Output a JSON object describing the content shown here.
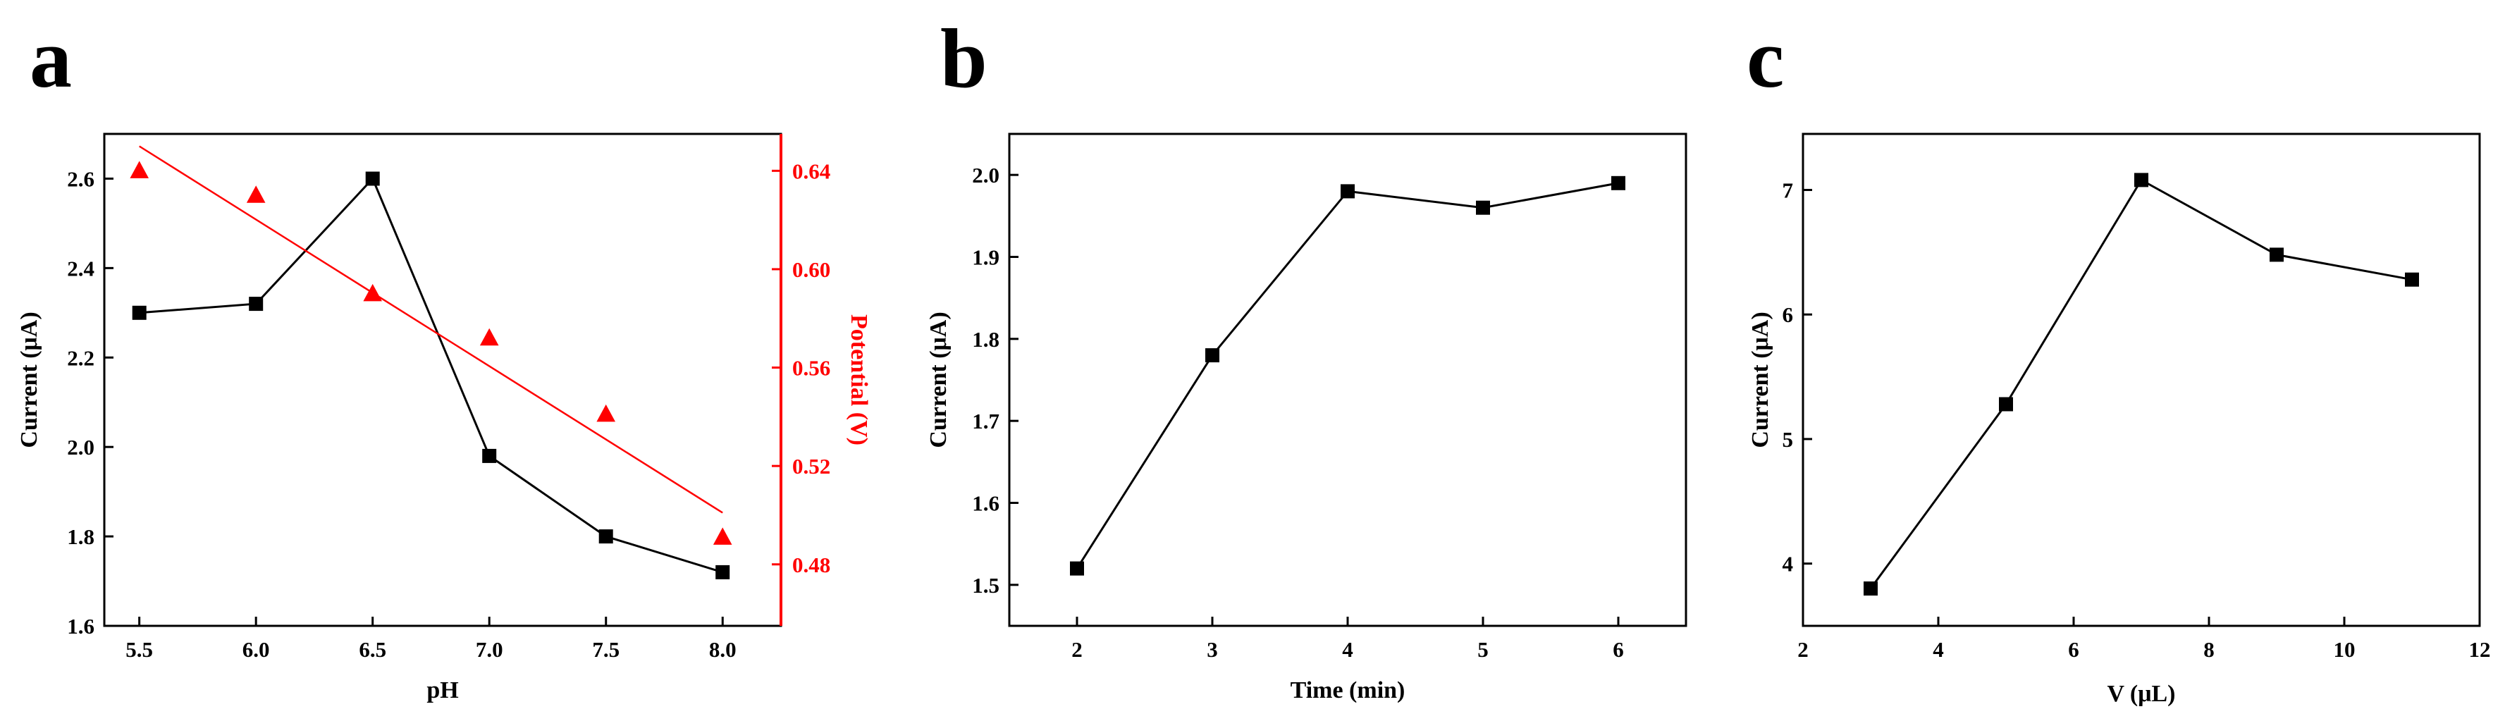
{
  "figure": {
    "panels": [
      "a",
      "b",
      "c"
    ]
  },
  "chart_data": [
    {
      "panel": "a",
      "type": "scatter",
      "title": "",
      "xlabel": "pH",
      "ylabel": "Current (μA)",
      "y2label": "Potential (V)",
      "xlim": [
        5.35,
        8.25
      ],
      "ylim": [
        1.6,
        2.7
      ],
      "y2lim": [
        0.455,
        0.655
      ],
      "xticks": [
        "5.5",
        "6.0",
        "6.5",
        "7.0",
        "7.5",
        "8.0"
      ],
      "yticks": [
        "1.6",
        "1.8",
        "2.0",
        "2.2",
        "2.4",
        "2.6"
      ],
      "y2ticks": [
        "0.48",
        "0.52",
        "0.56",
        "0.60",
        "0.64"
      ],
      "series": [
        {
          "name": "Current (μA)",
          "axis": "left",
          "marker": "square",
          "line": "connected",
          "color": "#000000",
          "x": [
            5.5,
            6.0,
            6.5,
            7.0,
            7.5,
            8.0
          ],
          "y": [
            2.3,
            2.32,
            2.6,
            1.98,
            1.8,
            1.72
          ]
        },
        {
          "name": "Potential (V)",
          "axis": "right",
          "marker": "triangle",
          "line": "none",
          "color": "#ff0000",
          "x": [
            5.5,
            6.0,
            6.5,
            7.0,
            7.5,
            8.0
          ],
          "y": [
            0.64,
            0.63,
            0.59,
            0.572,
            0.541,
            0.491
          ]
        },
        {
          "name": "Potential linear fit",
          "axis": "right",
          "marker": "none",
          "line": "fit",
          "color": "#ff0000",
          "x": [
            5.5,
            8.0
          ],
          "y": [
            0.65,
            0.501
          ]
        }
      ]
    },
    {
      "panel": "b",
      "type": "line",
      "title": "",
      "xlabel": "Time (min)",
      "ylabel": "Current (μA)",
      "xlim": [
        1.5,
        6.5
      ],
      "ylim": [
        1.45,
        2.05
      ],
      "xticks": [
        "2",
        "3",
        "4",
        "5",
        "6"
      ],
      "yticks": [
        "1.5",
        "1.6",
        "1.7",
        "1.8",
        "1.9",
        "2.0"
      ],
      "series": [
        {
          "name": "Current",
          "marker": "square",
          "color": "#000000",
          "x": [
            2,
            3,
            4,
            5,
            6
          ],
          "y": [
            1.52,
            1.78,
            1.98,
            1.96,
            1.99
          ]
        }
      ]
    },
    {
      "panel": "c",
      "type": "line",
      "title": "",
      "xlabel": "V (μL)",
      "ylabel": "Current (μA)",
      "xlim": [
        2,
        12
      ],
      "ylim": [
        3.5,
        7.45
      ],
      "xticks": [
        "2",
        "4",
        "6",
        "8",
        "10",
        "12"
      ],
      "yticks": [
        "4",
        "5",
        "6",
        "7"
      ],
      "series": [
        {
          "name": "Current",
          "marker": "square",
          "color": "#000000",
          "x": [
            3,
            5,
            7,
            9,
            11
          ],
          "y": [
            3.8,
            5.28,
            7.08,
            6.48,
            6.28
          ]
        }
      ]
    }
  ]
}
